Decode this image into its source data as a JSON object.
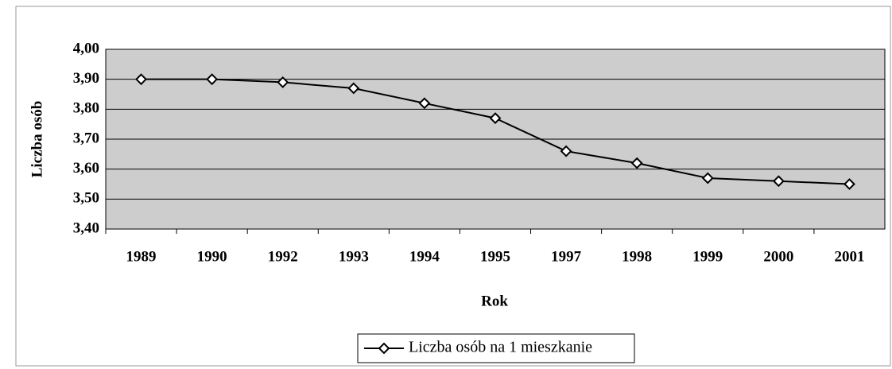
{
  "chart_data": {
    "type": "line",
    "categories": [
      "1989",
      "1990",
      "1992",
      "1993",
      "1994",
      "1995",
      "1997",
      "1998",
      "1999",
      "2000",
      "2001"
    ],
    "series": [
      {
        "name": "Liczba osób na 1 mieszkanie",
        "color": "#000000",
        "values": [
          3.9,
          3.9,
          3.89,
          3.87,
          3.82,
          3.77,
          3.66,
          3.62,
          3.57,
          3.56,
          3.55
        ]
      }
    ],
    "ylim": [
      3.4,
      4.0
    ],
    "yticks": [
      {
        "value": 3.4,
        "label": "3,40"
      },
      {
        "value": 3.5,
        "label": "3,50"
      },
      {
        "value": 3.6,
        "label": "3,60"
      },
      {
        "value": 3.7,
        "label": "3,70"
      },
      {
        "value": 3.8,
        "label": "3,80"
      },
      {
        "value": 3.9,
        "label": "3,90"
      },
      {
        "value": 4.0,
        "label": "4,00"
      }
    ],
    "xlabel": "Rok",
    "ylabel": "Liczba osób",
    "grid": true,
    "legend": "bottom"
  }
}
